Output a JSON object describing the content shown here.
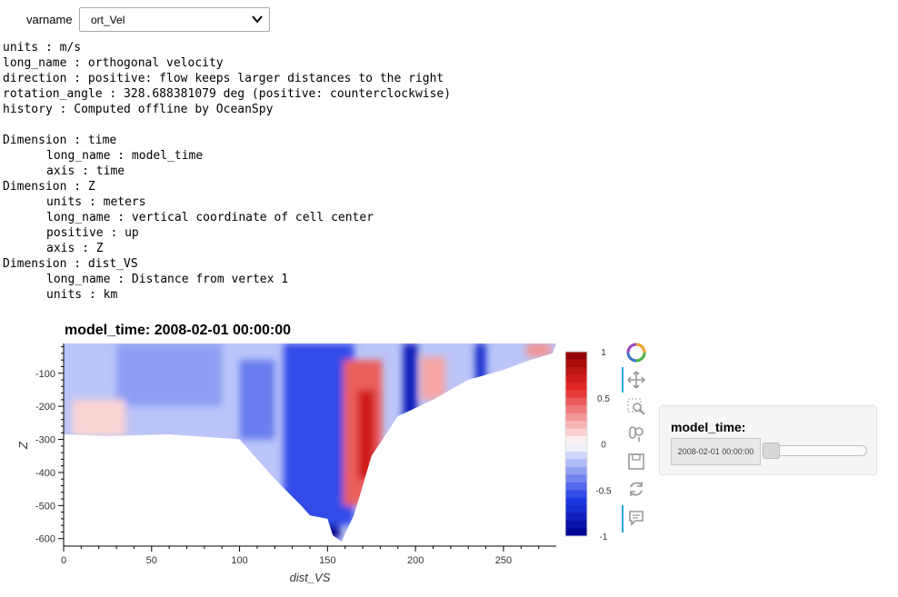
{
  "selector": {
    "label": "varname",
    "value": "ort_Vel",
    "chevron_icon": "chevron-down-icon"
  },
  "metadata": {
    "lines": [
      {
        "text": "units : m/s",
        "indent": false
      },
      {
        "text": "long_name : orthogonal velocity",
        "indent": false
      },
      {
        "text": "direction : positive: flow keeps larger distances to the right",
        "indent": false
      },
      {
        "text": "rotation_angle : 328.688381079 deg (positive: counterclockwise)",
        "indent": false
      },
      {
        "text": "history : Computed offline by OceanSpy",
        "indent": false
      },
      {
        "text": "",
        "indent": false
      },
      {
        "text": "Dimension : time",
        "indent": false
      },
      {
        "text": "long_name : model_time",
        "indent": true
      },
      {
        "text": "axis : time",
        "indent": true
      },
      {
        "text": "Dimension : Z",
        "indent": false
      },
      {
        "text": "units : meters",
        "indent": true
      },
      {
        "text": "long_name : vertical coordinate of cell center",
        "indent": true
      },
      {
        "text": "positive : up",
        "indent": true
      },
      {
        "text": "axis : Z",
        "indent": true
      },
      {
        "text": "Dimension : dist_VS",
        "indent": false
      },
      {
        "text": "long_name : Distance from vertex 1",
        "indent": true
      },
      {
        "text": "units : km",
        "indent": true
      }
    ]
  },
  "chart_data": {
    "type": "heatmap",
    "title": "model_time: 2008-02-01 00:00:00",
    "xlabel": "dist_VS",
    "ylabel": "Z",
    "xlim": [
      0,
      280
    ],
    "ylim": [
      -620,
      -10
    ],
    "x_ticks": [
      0,
      50,
      100,
      150,
      200,
      250
    ],
    "y_ticks": [
      -100,
      -200,
      -300,
      -400,
      -500,
      -600
    ],
    "colorbar": {
      "range": [
        -1,
        1
      ],
      "ticks": [
        1,
        0.5,
        0,
        -0.5,
        -1
      ],
      "colormap": "blue-white-red",
      "low_color": "#00008b",
      "mid_color": "#ffffff",
      "high_color": "#8b0000"
    },
    "bathymetry": [
      {
        "x": 0,
        "z": -285
      },
      {
        "x": 25,
        "z": -290
      },
      {
        "x": 60,
        "z": -285
      },
      {
        "x": 100,
        "z": -300
      },
      {
        "x": 120,
        "z": -420
      },
      {
        "x": 135,
        "z": -500
      },
      {
        "x": 140,
        "z": -530
      },
      {
        "x": 150,
        "z": -540
      },
      {
        "x": 153,
        "z": -590
      },
      {
        "x": 158,
        "z": -610
      },
      {
        "x": 160,
        "z": -585
      },
      {
        "x": 165,
        "z": -530
      },
      {
        "x": 175,
        "z": -350
      },
      {
        "x": 190,
        "z": -230
      },
      {
        "x": 210,
        "z": -180
      },
      {
        "x": 230,
        "z": -120
      },
      {
        "x": 250,
        "z": -90
      },
      {
        "x": 265,
        "z": -60
      },
      {
        "x": 278,
        "z": -40
      }
    ],
    "features": [
      {
        "x_center": 148,
        "x_width": 18,
        "z_top": -10,
        "z_bottom": -600,
        "value": -1.0
      },
      {
        "x_center": 145,
        "x_width": 40,
        "z_top": -10,
        "z_bottom": -560,
        "value": -0.55
      },
      {
        "x_center": 170,
        "x_width": 22,
        "z_top": -60,
        "z_bottom": -500,
        "value": 0.45
      },
      {
        "x_center": 172,
        "x_width": 10,
        "z_top": -150,
        "z_bottom": -420,
        "value": 0.7
      },
      {
        "x_center": 197,
        "x_width": 8,
        "z_top": -10,
        "z_bottom": -250,
        "value": -0.8
      },
      {
        "x_center": 210,
        "x_width": 14,
        "z_top": -50,
        "z_bottom": -180,
        "value": 0.25
      },
      {
        "x_center": 237,
        "x_width": 6,
        "z_top": -10,
        "z_bottom": -130,
        "value": -0.7
      },
      {
        "x_center": 60,
        "x_width": 60,
        "z_top": -10,
        "z_bottom": -200,
        "value": -0.3
      },
      {
        "x_center": 20,
        "x_width": 30,
        "z_top": -180,
        "z_bottom": -290,
        "value": 0.12
      },
      {
        "x_center": 110,
        "x_width": 20,
        "z_top": -60,
        "z_bottom": -300,
        "value": -0.4
      },
      {
        "x_center": 270,
        "x_width": 14,
        "z_top": -10,
        "z_bottom": -50,
        "value": 0.3
      }
    ]
  },
  "toolbar": {
    "tools": [
      "bokeh-logo-icon",
      "pan-icon",
      "box-zoom-icon",
      "wheel-zoom-icon",
      "save-icon",
      "reset-icon",
      "hover-icon"
    ]
  },
  "widget": {
    "title": "model_time:",
    "value": "2008-02-01 00:00:00",
    "slider_position": 0
  }
}
